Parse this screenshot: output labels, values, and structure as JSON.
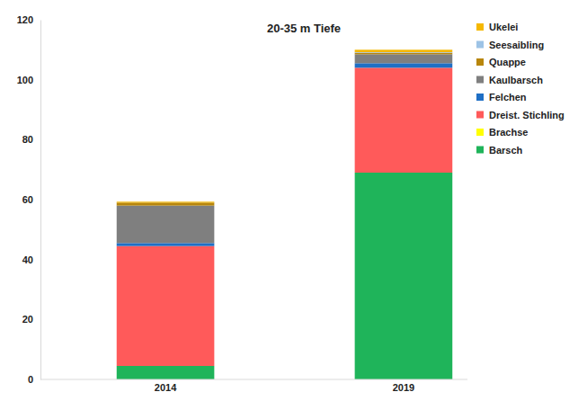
{
  "chart_data": {
    "type": "bar",
    "title": "20-35 m Tiefe",
    "stacked": true,
    "legend": "top-right",
    "categories": [
      "2014",
      "2019"
    ],
    "ylim": [
      0,
      120
    ],
    "yticks": [
      0,
      20,
      40,
      60,
      80,
      100,
      120
    ],
    "series": [
      {
        "name": "Barsch",
        "color": "#1fb45a",
        "values": [
          4.5,
          69
        ]
      },
      {
        "name": "Brachse",
        "color": "#ffff00",
        "values": [
          0,
          0
        ]
      },
      {
        "name": "Dreist. Stichling",
        "color": "#ff5a5a",
        "values": [
          40,
          35
        ]
      },
      {
        "name": "Felchen",
        "color": "#1f6fc5",
        "values": [
          1,
          1.5
        ]
      },
      {
        "name": "Kaulbarsch",
        "color": "#7f7f7f",
        "values": [
          12.5,
          3
        ]
      },
      {
        "name": "Quappe",
        "color": "#b8860b",
        "values": [
          1,
          0.5
        ]
      },
      {
        "name": "Seesaibling",
        "color": "#9dc3e6",
        "values": [
          0,
          0.2
        ]
      },
      {
        "name": "Ukelei",
        "color": "#f5b800",
        "values": [
          0.3,
          0.8
        ]
      }
    ]
  }
}
